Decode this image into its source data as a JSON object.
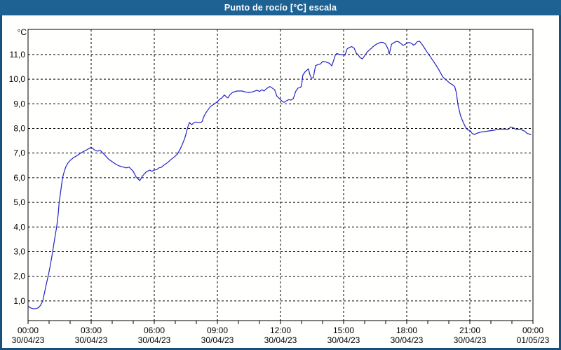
{
  "window": {
    "title": "Punto de rocío [°C] escala"
  },
  "colors": {
    "titlebar": "#1e6293",
    "frame": "#174f7d",
    "line": "#2222c4",
    "grid": "#000000",
    "axis": "#000000",
    "plot_background": "#fffffe",
    "text": "#000000"
  },
  "chart_data": {
    "type": "line",
    "title": "Punto de rocío [°C] escala",
    "ylabel": "°C",
    "xlabel": "",
    "legend": "none",
    "grid": "dashed",
    "xlim_hours": [
      0,
      24
    ],
    "ylim": [
      0.2,
      12.02
    ],
    "x_minor_tick_every_hours": 1,
    "y_ticks": [
      {
        "value": 1,
        "label": "1,0"
      },
      {
        "value": 2,
        "label": "2,0"
      },
      {
        "value": 3,
        "label": "3,0"
      },
      {
        "value": 4,
        "label": "4,0"
      },
      {
        "value": 5,
        "label": "5,0"
      },
      {
        "value": 6,
        "label": "6,0"
      },
      {
        "value": 7,
        "label": "7,0"
      },
      {
        "value": 8,
        "label": "8,0"
      },
      {
        "value": 9,
        "label": "9,0"
      },
      {
        "value": 10,
        "label": "10,0"
      },
      {
        "value": 11,
        "label": "11,0"
      }
    ],
    "x_ticks": [
      {
        "hour": 0,
        "time": "00:00",
        "date": "30/04/23"
      },
      {
        "hour": 3,
        "time": "03:00",
        "date": "30/04/23"
      },
      {
        "hour": 6,
        "time": "06:00",
        "date": "30/04/23"
      },
      {
        "hour": 9,
        "time": "09:00",
        "date": "30/04/23"
      },
      {
        "hour": 12,
        "time": "12:00",
        "date": "30/04/23"
      },
      {
        "hour": 15,
        "time": "15:00",
        "date": "30/04/23"
      },
      {
        "hour": 18,
        "time": "18:00",
        "date": "30/04/23"
      },
      {
        "hour": 21,
        "time": "21:00",
        "date": "30/04/23"
      },
      {
        "hour": 24,
        "time": "00:00",
        "date": "01/05/23"
      }
    ],
    "series": [
      {
        "name": "Punto de rocío",
        "unit": "°C",
        "color": "#2222c4",
        "points": [
          [
            0,
            0.8
          ],
          [
            0.1,
            0.72
          ],
          [
            0.25,
            0.68
          ],
          [
            0.4,
            0.69
          ],
          [
            0.5,
            0.73
          ],
          [
            0.6,
            0.83
          ],
          [
            0.7,
            1.0
          ],
          [
            0.8,
            1.4
          ],
          [
            0.9,
            1.8
          ],
          [
            0.98,
            2.1
          ],
          [
            1.08,
            2.55
          ],
          [
            1.17,
            3.0
          ],
          [
            1.27,
            3.55
          ],
          [
            1.36,
            4.0
          ],
          [
            1.43,
            4.5
          ],
          [
            1.48,
            5.0
          ],
          [
            1.56,
            5.5
          ],
          [
            1.64,
            6.0
          ],
          [
            1.72,
            6.25
          ],
          [
            1.8,
            6.45
          ],
          [
            1.9,
            6.6
          ],
          [
            2.0,
            6.7
          ],
          [
            2.17,
            6.82
          ],
          [
            2.33,
            6.9
          ],
          [
            2.5,
            7.0
          ],
          [
            2.67,
            7.08
          ],
          [
            2.83,
            7.15
          ],
          [
            3.0,
            7.24
          ],
          [
            3.1,
            7.17
          ],
          [
            3.2,
            7.1
          ],
          [
            3.33,
            7.08
          ],
          [
            3.42,
            7.12
          ],
          [
            3.5,
            7.05
          ],
          [
            3.67,
            6.9
          ],
          [
            3.83,
            6.75
          ],
          [
            4.0,
            6.65
          ],
          [
            4.17,
            6.55
          ],
          [
            4.33,
            6.48
          ],
          [
            4.5,
            6.44
          ],
          [
            4.67,
            6.4
          ],
          [
            4.8,
            6.43
          ],
          [
            5.0,
            6.26
          ],
          [
            5.13,
            6.04
          ],
          [
            5.31,
            5.88
          ],
          [
            5.44,
            6.07
          ],
          [
            5.61,
            6.23
          ],
          [
            5.78,
            6.31
          ],
          [
            5.89,
            6.26
          ],
          [
            6.0,
            6.31
          ],
          [
            6.11,
            6.33
          ],
          [
            6.22,
            6.4
          ],
          [
            6.33,
            6.42
          ],
          [
            6.44,
            6.5
          ],
          [
            6.56,
            6.57
          ],
          [
            6.67,
            6.64
          ],
          [
            6.78,
            6.73
          ],
          [
            6.89,
            6.8
          ],
          [
            7.0,
            6.88
          ],
          [
            7.11,
            6.97
          ],
          [
            7.22,
            7.14
          ],
          [
            7.33,
            7.35
          ],
          [
            7.44,
            7.58
          ],
          [
            7.5,
            7.75
          ],
          [
            7.56,
            7.95
          ],
          [
            7.61,
            8.1
          ],
          [
            7.67,
            8.24
          ],
          [
            7.78,
            8.15
          ],
          [
            7.89,
            8.24
          ],
          [
            8.0,
            8.26
          ],
          [
            8.11,
            8.23
          ],
          [
            8.22,
            8.24
          ],
          [
            8.28,
            8.29
          ],
          [
            8.33,
            8.43
          ],
          [
            8.44,
            8.62
          ],
          [
            8.56,
            8.76
          ],
          [
            8.67,
            8.89
          ],
          [
            8.78,
            8.95
          ],
          [
            8.89,
            9.02
          ],
          [
            9.0,
            9.08
          ],
          [
            9.11,
            9.19
          ],
          [
            9.22,
            9.24
          ],
          [
            9.33,
            9.36
          ],
          [
            9.44,
            9.27
          ],
          [
            9.5,
            9.24
          ],
          [
            9.61,
            9.38
          ],
          [
            9.72,
            9.46
          ],
          [
            9.83,
            9.49
          ],
          [
            9.94,
            9.52
          ],
          [
            10.06,
            9.52
          ],
          [
            10.17,
            9.52
          ],
          [
            10.28,
            9.49
          ],
          [
            10.39,
            9.47
          ],
          [
            10.5,
            9.46
          ],
          [
            10.61,
            9.47
          ],
          [
            10.72,
            9.5
          ],
          [
            10.89,
            9.55
          ],
          [
            11.0,
            9.5
          ],
          [
            11.11,
            9.57
          ],
          [
            11.22,
            9.52
          ],
          [
            11.33,
            9.61
          ],
          [
            11.44,
            9.68
          ],
          [
            11.5,
            9.7
          ],
          [
            11.61,
            9.64
          ],
          [
            11.72,
            9.57
          ],
          [
            11.83,
            9.31
          ],
          [
            11.94,
            9.22
          ],
          [
            12.06,
            9.12
          ],
          [
            12.17,
            9.06
          ],
          [
            12.28,
            9.12
          ],
          [
            12.39,
            9.17
          ],
          [
            12.5,
            9.15
          ],
          [
            12.61,
            9.21
          ],
          [
            12.72,
            9.5
          ],
          [
            12.83,
            9.64
          ],
          [
            12.94,
            9.66
          ],
          [
            13.0,
            9.73
          ],
          [
            13.06,
            10.16
          ],
          [
            13.17,
            10.3
          ],
          [
            13.28,
            10.38
          ],
          [
            13.33,
            10.42
          ],
          [
            13.39,
            10.2
          ],
          [
            13.47,
            10.04
          ],
          [
            13.56,
            10.06
          ],
          [
            13.61,
            10.3
          ],
          [
            13.67,
            10.55
          ],
          [
            13.78,
            10.59
          ],
          [
            13.89,
            10.61
          ],
          [
            14.0,
            10.72
          ],
          [
            14.11,
            10.71
          ],
          [
            14.22,
            10.68
          ],
          [
            14.33,
            10.64
          ],
          [
            14.44,
            10.54
          ],
          [
            14.56,
            10.85
          ],
          [
            14.61,
            10.99
          ],
          [
            14.67,
            11.04
          ],
          [
            14.78,
            11.01
          ],
          [
            14.89,
            10.99
          ],
          [
            15.0,
            11.0
          ],
          [
            15.06,
            10.97
          ],
          [
            15.17,
            11.23
          ],
          [
            15.28,
            11.29
          ],
          [
            15.39,
            11.32
          ],
          [
            15.5,
            11.26
          ],
          [
            15.61,
            11.04
          ],
          [
            15.67,
            11.01
          ],
          [
            15.78,
            10.88
          ],
          [
            15.89,
            10.82
          ],
          [
            16.0,
            10.95
          ],
          [
            16.11,
            11.09
          ],
          [
            16.22,
            11.18
          ],
          [
            16.33,
            11.26
          ],
          [
            16.44,
            11.35
          ],
          [
            16.56,
            11.42
          ],
          [
            16.67,
            11.46
          ],
          [
            16.78,
            11.5
          ],
          [
            16.89,
            11.49
          ],
          [
            17.0,
            11.42
          ],
          [
            17.11,
            11.23
          ],
          [
            17.17,
            11.02
          ],
          [
            17.28,
            11.42
          ],
          [
            17.39,
            11.48
          ],
          [
            17.5,
            11.53
          ],
          [
            17.61,
            11.52
          ],
          [
            17.72,
            11.45
          ],
          [
            17.83,
            11.37
          ],
          [
            17.94,
            11.42
          ],
          [
            18.0,
            11.46
          ],
          [
            18.11,
            11.49
          ],
          [
            18.22,
            11.46
          ],
          [
            18.33,
            11.38
          ],
          [
            18.39,
            11.41
          ],
          [
            18.5,
            11.52
          ],
          [
            18.61,
            11.54
          ],
          [
            18.72,
            11.42
          ],
          [
            18.83,
            11.28
          ],
          [
            18.94,
            11.13
          ],
          [
            19.06,
            10.99
          ],
          [
            19.17,
            10.85
          ],
          [
            19.28,
            10.71
          ],
          [
            19.39,
            10.57
          ],
          [
            19.5,
            10.42
          ],
          [
            19.61,
            10.25
          ],
          [
            19.72,
            10.09
          ],
          [
            19.83,
            10.0
          ],
          [
            19.94,
            9.92
          ],
          [
            20.06,
            9.83
          ],
          [
            20.17,
            9.78
          ],
          [
            20.28,
            9.7
          ],
          [
            20.36,
            9.45
          ],
          [
            20.44,
            8.94
          ],
          [
            20.56,
            8.51
          ],
          [
            20.67,
            8.28
          ],
          [
            20.78,
            8.08
          ],
          [
            20.89,
            7.94
          ],
          [
            21.0,
            7.92
          ],
          [
            21.11,
            7.8
          ],
          [
            21.22,
            7.75
          ],
          [
            21.33,
            7.8
          ],
          [
            21.5,
            7.85
          ],
          [
            21.67,
            7.87
          ],
          [
            21.83,
            7.89
          ],
          [
            22.0,
            7.91
          ],
          [
            22.17,
            7.93
          ],
          [
            22.33,
            7.96
          ],
          [
            22.5,
            7.97
          ],
          [
            22.67,
            7.97
          ],
          [
            22.83,
            7.96
          ],
          [
            22.94,
            8.06
          ],
          [
            23.06,
            8.03
          ],
          [
            23.17,
            7.97
          ],
          [
            23.28,
            7.96
          ],
          [
            23.39,
            7.97
          ],
          [
            23.5,
            7.93
          ],
          [
            23.61,
            7.89
          ],
          [
            23.72,
            7.8
          ],
          [
            23.9,
            7.75
          ]
        ]
      }
    ]
  }
}
